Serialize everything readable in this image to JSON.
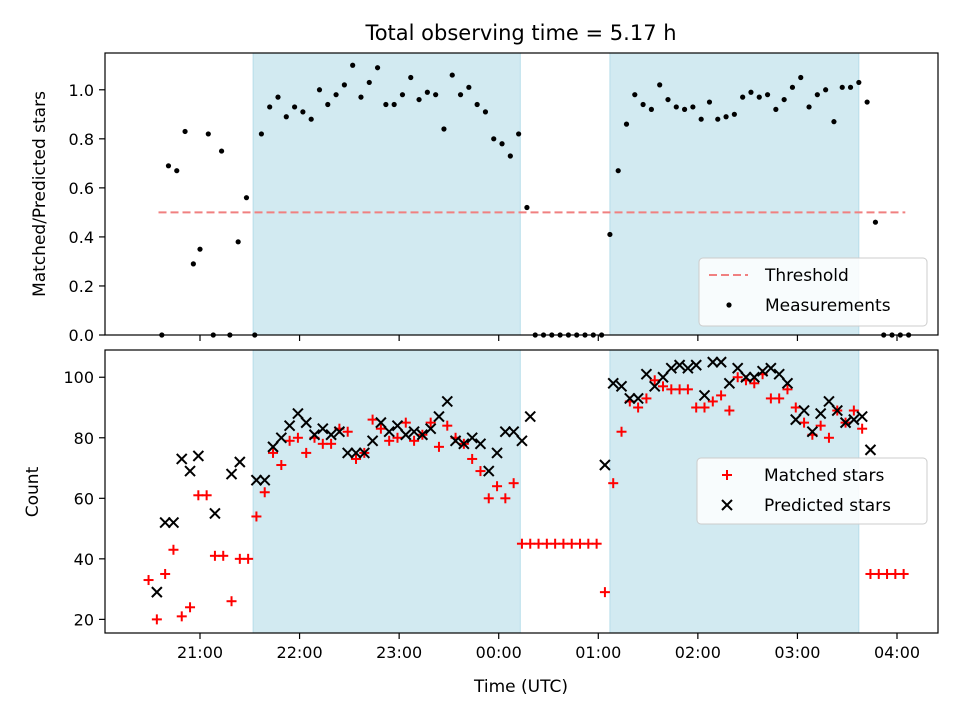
{
  "figure": {
    "title": "Total observing time = 5.17 h",
    "xlabel": "Time (UTC)",
    "xticks": [
      "21:00",
      "22:00",
      "23:00",
      "00:00",
      "01:00",
      "02:00",
      "03:00",
      "04:00"
    ],
    "shade_color": "#add8e6"
  },
  "chart_data": [
    {
      "type": "scatter",
      "ylabel": "Matched/Predicted stars",
      "ylim": [
        0,
        1.15
      ],
      "yticks": [
        "0.0",
        "0.2",
        "0.4",
        "0.6",
        "0.8",
        "1.0"
      ],
      "shaded_intervals": [
        [
          "21:32",
          "00:13"
        ],
        [
          "01:07",
          "03:37"
        ]
      ],
      "threshold": {
        "name": "Threshold",
        "value": 0.5,
        "x_range": [
          "20:35",
          "04:05"
        ],
        "color": "#f08080"
      },
      "measurements": {
        "name": "Measurements",
        "color": "#000000",
        "points": [
          [
            "20:37",
            0.0
          ],
          [
            "20:41",
            0.69
          ],
          [
            "20:46",
            0.67
          ],
          [
            "20:51",
            0.83
          ],
          [
            "20:56",
            0.29
          ],
          [
            "21:00",
            0.35
          ],
          [
            "21:05",
            0.82
          ],
          [
            "21:08",
            0.0
          ],
          [
            "21:13",
            0.75
          ],
          [
            "21:18",
            0.0
          ],
          [
            "21:23",
            0.38
          ],
          [
            "21:28",
            0.56
          ],
          [
            "21:33",
            0.0
          ],
          [
            "21:37",
            0.82
          ],
          [
            "21:42",
            0.93
          ],
          [
            "21:47",
            0.97
          ],
          [
            "21:52",
            0.89
          ],
          [
            "21:57",
            0.93
          ],
          [
            "22:02",
            0.91
          ],
          [
            "22:07",
            0.88
          ],
          [
            "22:12",
            1.0
          ],
          [
            "22:17",
            0.94
          ],
          [
            "22:22",
            0.98
          ],
          [
            "22:27",
            1.02
          ],
          [
            "22:32",
            1.1
          ],
          [
            "22:37",
            0.97
          ],
          [
            "22:42",
            1.03
          ],
          [
            "22:47",
            1.09
          ],
          [
            "22:52",
            0.94
          ],
          [
            "22:57",
            0.94
          ],
          [
            "23:02",
            0.98
          ],
          [
            "23:07",
            1.05
          ],
          [
            "23:12",
            0.96
          ],
          [
            "23:17",
            0.99
          ],
          [
            "23:22",
            0.98
          ],
          [
            "23:27",
            0.84
          ],
          [
            "23:32",
            1.06
          ],
          [
            "23:37",
            0.98
          ],
          [
            "23:42",
            1.01
          ],
          [
            "23:47",
            0.94
          ],
          [
            "23:52",
            0.91
          ],
          [
            "23:57",
            0.8
          ],
          [
            "00:02",
            0.78
          ],
          [
            "00:07",
            0.73
          ],
          [
            "00:12",
            0.82
          ],
          [
            "00:17",
            0.52
          ],
          [
            "00:22",
            0.0
          ],
          [
            "00:27",
            0.0
          ],
          [
            "00:32",
            0.0
          ],
          [
            "00:37",
            0.0
          ],
          [
            "00:42",
            0.0
          ],
          [
            "00:47",
            0.0
          ],
          [
            "00:52",
            0.0
          ],
          [
            "00:57",
            0.0
          ],
          [
            "01:02",
            0.0
          ],
          [
            "01:07",
            0.41
          ],
          [
            "01:12",
            0.67
          ],
          [
            "01:17",
            0.86
          ],
          [
            "01:22",
            0.98
          ],
          [
            "01:27",
            0.94
          ],
          [
            "01:32",
            0.92
          ],
          [
            "01:37",
            1.02
          ],
          [
            "01:42",
            0.96
          ],
          [
            "01:47",
            0.93
          ],
          [
            "01:52",
            0.92
          ],
          [
            "01:57",
            0.93
          ],
          [
            "02:02",
            0.88
          ],
          [
            "02:07",
            0.95
          ],
          [
            "02:12",
            0.88
          ],
          [
            "02:17",
            0.89
          ],
          [
            "02:22",
            0.9
          ],
          [
            "02:27",
            0.97
          ],
          [
            "02:32",
            0.99
          ],
          [
            "02:37",
            0.97
          ],
          [
            "02:42",
            0.98
          ],
          [
            "02:47",
            0.92
          ],
          [
            "02:52",
            0.96
          ],
          [
            "02:57",
            1.01
          ],
          [
            "03:02",
            1.05
          ],
          [
            "03:07",
            0.93
          ],
          [
            "03:12",
            0.98
          ],
          [
            "03:17",
            1.0
          ],
          [
            "03:22",
            0.87
          ],
          [
            "03:27",
            1.01
          ],
          [
            "03:32",
            1.01
          ],
          [
            "03:37",
            1.03
          ],
          [
            "03:42",
            0.95
          ],
          [
            "03:47",
            0.46
          ],
          [
            "03:52",
            0.0
          ],
          [
            "03:57",
            0.0
          ],
          [
            "04:02",
            0.0
          ],
          [
            "04:07",
            0.0
          ]
        ]
      },
      "legend": {
        "placement": "lower right",
        "entries": [
          "Threshold",
          "Measurements"
        ]
      }
    },
    {
      "type": "scatter",
      "ylabel": "Count",
      "ylim": [
        15.5,
        109
      ],
      "yticks": [
        "20",
        "40",
        "60",
        "80",
        "100"
      ],
      "shaded_intervals": [
        [
          "21:32",
          "00:13"
        ],
        [
          "01:07",
          "03:37"
        ]
      ],
      "series": [
        {
          "name": "Matched stars",
          "marker": "+",
          "color": "#ff0000",
          "points": [
            [
              "20:29",
              33
            ],
            [
              "20:34",
              20
            ],
            [
              "20:39",
              35
            ],
            [
              "20:44",
              43
            ],
            [
              "20:49",
              21
            ],
            [
              "20:54",
              24
            ],
            [
              "20:59",
              61
            ],
            [
              "21:04",
              61
            ],
            [
              "21:09",
              41
            ],
            [
              "21:14",
              41
            ],
            [
              "21:19",
              26
            ],
            [
              "21:24",
              40
            ],
            [
              "21:29",
              40
            ],
            [
              "21:34",
              54
            ],
            [
              "21:39",
              62
            ],
            [
              "21:44",
              75
            ],
            [
              "21:49",
              71
            ],
            [
              "21:54",
              79
            ],
            [
              "21:59",
              80
            ],
            [
              "22:04",
              75
            ],
            [
              "22:09",
              80
            ],
            [
              "22:14",
              78
            ],
            [
              "22:19",
              78
            ],
            [
              "22:24",
              83
            ],
            [
              "22:29",
              82
            ],
            [
              "22:34",
              73
            ],
            [
              "22:39",
              75
            ],
            [
              "22:44",
              86
            ],
            [
              "22:49",
              83
            ],
            [
              "22:54",
              79
            ],
            [
              "22:59",
              80
            ],
            [
              "23:04",
              85
            ],
            [
              "23:09",
              79
            ],
            [
              "23:14",
              81
            ],
            [
              "23:19",
              85
            ],
            [
              "23:24",
              77
            ],
            [
              "23:29",
              84
            ],
            [
              "23:34",
              80
            ],
            [
              "23:39",
              78
            ],
            [
              "23:44",
              73
            ],
            [
              "23:49",
              69
            ],
            [
              "23:54",
              60
            ],
            [
              "23:59",
              64
            ],
            [
              "00:04",
              60
            ],
            [
              "00:09",
              65
            ],
            [
              "00:14",
              45
            ],
            [
              "00:19",
              45
            ],
            [
              "00:24",
              45
            ],
            [
              "00:29",
              45
            ],
            [
              "00:34",
              45
            ],
            [
              "00:39",
              45
            ],
            [
              "00:44",
              45
            ],
            [
              "00:49",
              45
            ],
            [
              "00:54",
              45
            ],
            [
              "00:59",
              45
            ],
            [
              "01:04",
              29
            ],
            [
              "01:09",
              65
            ],
            [
              "01:14",
              82
            ],
            [
              "01:19",
              92
            ],
            [
              "01:24",
              90
            ],
            [
              "01:29",
              93
            ],
            [
              "01:34",
              99
            ],
            [
              "01:39",
              97
            ],
            [
              "01:44",
              96
            ],
            [
              "01:49",
              96
            ],
            [
              "01:54",
              96
            ],
            [
              "01:59",
              90
            ],
            [
              "02:04",
              90
            ],
            [
              "02:09",
              92
            ],
            [
              "02:14",
              94
            ],
            [
              "02:19",
              89
            ],
            [
              "02:24",
              100
            ],
            [
              "02:29",
              99
            ],
            [
              "02:34",
              98
            ],
            [
              "02:39",
              101
            ],
            [
              "02:44",
              93
            ],
            [
              "02:49",
              93
            ],
            [
              "02:54",
              96
            ],
            [
              "02:59",
              90
            ],
            [
              "03:04",
              85
            ],
            [
              "03:09",
              81
            ],
            [
              "03:14",
              84
            ],
            [
              "03:19",
              80
            ],
            [
              "03:24",
              89
            ],
            [
              "03:29",
              85
            ],
            [
              "03:34",
              89
            ],
            [
              "03:39",
              83
            ],
            [
              "03:44",
              35
            ],
            [
              "03:49",
              35
            ],
            [
              "03:54",
              35
            ],
            [
              "03:59",
              35
            ],
            [
              "04:04",
              35
            ]
          ]
        },
        {
          "name": "Predicted stars",
          "marker": "x",
          "color": "#000000",
          "points": [
            [
              "20:34",
              29
            ],
            [
              "20:39",
              52
            ],
            [
              "20:44",
              52
            ],
            [
              "20:49",
              73
            ],
            [
              "20:54",
              69
            ],
            [
              "20:59",
              74
            ],
            [
              "21:09",
              55
            ],
            [
              "21:19",
              68
            ],
            [
              "21:24",
              72
            ],
            [
              "21:34",
              66
            ],
            [
              "21:39",
              66
            ],
            [
              "21:44",
              77
            ],
            [
              "21:49",
              80
            ],
            [
              "21:54",
              84
            ],
            [
              "21:59",
              88
            ],
            [
              "22:04",
              85
            ],
            [
              "22:09",
              81
            ],
            [
              "22:14",
              83
            ],
            [
              "22:19",
              81
            ],
            [
              "22:24",
              82
            ],
            [
              "22:29",
              75
            ],
            [
              "22:34",
              75
            ],
            [
              "22:39",
              75
            ],
            [
              "22:44",
              79
            ],
            [
              "22:49",
              85
            ],
            [
              "22:54",
              82
            ],
            [
              "22:59",
              84
            ],
            [
              "23:04",
              81
            ],
            [
              "23:09",
              82
            ],
            [
              "23:14",
              81
            ],
            [
              "23:19",
              83
            ],
            [
              "23:24",
              87
            ],
            [
              "23:29",
              92
            ],
            [
              "23:34",
              79
            ],
            [
              "23:39",
              78
            ],
            [
              "23:44",
              80
            ],
            [
              "23:49",
              78
            ],
            [
              "23:54",
              69
            ],
            [
              "23:59",
              75
            ],
            [
              "00:04",
              82
            ],
            [
              "00:09",
              82
            ],
            [
              "00:14",
              79
            ],
            [
              "00:19",
              87
            ],
            [
              "01:04",
              71
            ],
            [
              "01:09",
              98
            ],
            [
              "01:14",
              97
            ],
            [
              "01:19",
              93
            ],
            [
              "01:24",
              93
            ],
            [
              "01:29",
              101
            ],
            [
              "01:34",
              97
            ],
            [
              "01:39",
              100
            ],
            [
              "01:44",
              103
            ],
            [
              "01:49",
              104
            ],
            [
              "01:54",
              103
            ],
            [
              "01:59",
              104
            ],
            [
              "02:04",
              94
            ],
            [
              "02:09",
              105
            ],
            [
              "02:14",
              105
            ],
            [
              "02:19",
              98
            ],
            [
              "02:24",
              103
            ],
            [
              "02:29",
              100
            ],
            [
              "02:34",
              100
            ],
            [
              "02:39",
              102
            ],
            [
              "02:44",
              103
            ],
            [
              "02:49",
              101
            ],
            [
              "02:54",
              98
            ],
            [
              "02:59",
              86
            ],
            [
              "03:04",
              89
            ],
            [
              "03:09",
              82
            ],
            [
              "03:14",
              88
            ],
            [
              "03:19",
              92
            ],
            [
              "03:24",
              89
            ],
            [
              "03:29",
              85
            ],
            [
              "03:34",
              86
            ],
            [
              "03:39",
              87
            ],
            [
              "03:44",
              76
            ]
          ]
        }
      ],
      "legend": {
        "placement": "center right",
        "entries": [
          "Matched stars",
          "Predicted stars"
        ]
      }
    }
  ]
}
